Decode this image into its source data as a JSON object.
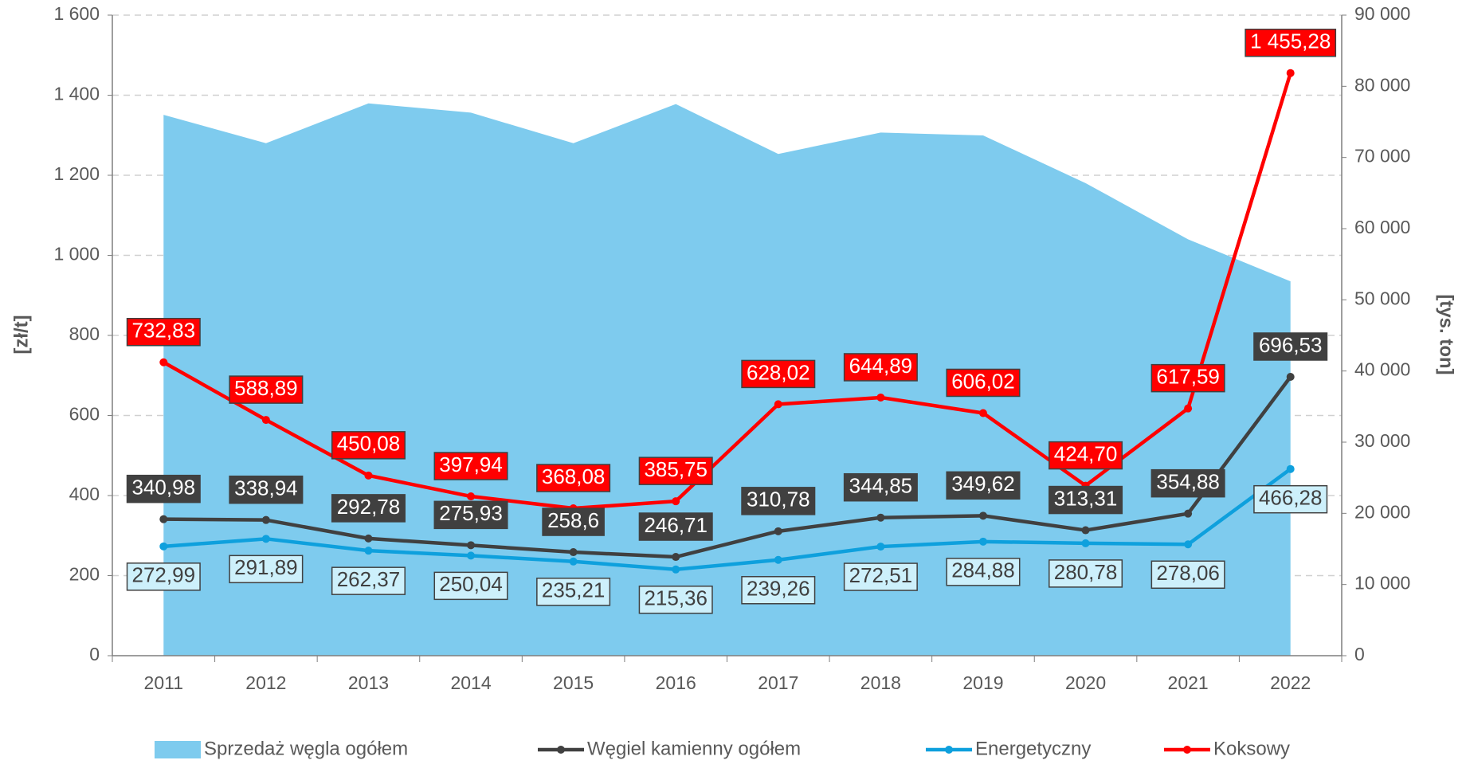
{
  "chart_data": {
    "type": "line",
    "y_label": "[zł/t]",
    "y2_label": "[tys. ton]",
    "categories": [
      "2011",
      "2012",
      "2013",
      "2014",
      "2015",
      "2016",
      "2017",
      "2018",
      "2019",
      "2020",
      "2021",
      "2022"
    ],
    "ylim": [
      0,
      1600
    ],
    "yticks": [
      0,
      200,
      400,
      600,
      800,
      {
        "value": 1000,
        "label": "1 000"
      },
      {
        "value": 1200,
        "label": "1 200"
      },
      {
        "value": 1400,
        "label": "1 400"
      },
      {
        "value": 1600,
        "label": "1 600"
      }
    ],
    "y2lim": [
      0,
      90000
    ],
    "y2ticks": [
      0,
      {
        "value": 10000,
        "label": "10 000"
      },
      {
        "value": 20000,
        "label": "20 000"
      },
      {
        "value": 30000,
        "label": "30 000"
      },
      {
        "value": 40000,
        "label": "40 000"
      },
      {
        "value": 50000,
        "label": "50 000"
      },
      {
        "value": 60000,
        "label": "60 000"
      },
      {
        "value": 70000,
        "label": "70 000"
      },
      {
        "value": 80000,
        "label": "80 000"
      },
      {
        "value": 90000,
        "label": "90 000"
      }
    ],
    "grid": true,
    "legend": "bottom",
    "series": [
      {
        "name": "Sprzedaż węgla ogółem",
        "type": "area",
        "axis": "y2",
        "color": "#7ecbee",
        "values": [
          76000,
          72000,
          77600,
          76300,
          72000,
          77500,
          70500,
          73500,
          73100,
          66400,
          58500,
          52600
        ]
      },
      {
        "name": "Węgiel kamienny ogółem",
        "type": "line",
        "color": "#404040",
        "label_fill": "#404040",
        "label_text": "#ffffff",
        "label_pos": "above",
        "values": [
          340.98,
          338.94,
          292.78,
          275.93,
          258.6,
          246.71,
          310.78,
          344.85,
          349.62,
          313.31,
          354.88,
          696.53
        ],
        "value_labels": [
          "340,98",
          "338,94",
          "292,78",
          "275,93",
          "258,6",
          "246,71",
          "310,78",
          "344,85",
          "349,62",
          "313,31",
          "354,88",
          "696,53"
        ]
      },
      {
        "name": "Energetyczny",
        "type": "line",
        "color": "#0ea0dd",
        "label_fill": "#cdf0fb",
        "label_text": "#404040",
        "label_pos": "below",
        "values": [
          272.99,
          291.89,
          262.37,
          250.04,
          235.21,
          215.36,
          239.26,
          272.51,
          284.88,
          280.78,
          278.06,
          466.28
        ],
        "value_labels": [
          "272,99",
          "291,89",
          "262,37",
          "250,04",
          "235,21",
          "215,36",
          "239,26",
          "272,51",
          "284,88",
          "280,78",
          "278,06",
          "466,28"
        ]
      },
      {
        "name": "Koksowy",
        "type": "line",
        "color": "#ff0000",
        "label_fill": "#ff0000",
        "label_text": "#ffffff",
        "label_pos": "above",
        "values": [
          732.83,
          588.89,
          450.08,
          397.94,
          368.08,
          385.75,
          628.02,
          644.89,
          606.02,
          424.7,
          617.59,
          1455.28
        ],
        "value_labels": [
          "732,83",
          "588,89",
          "450,08",
          "397,94",
          "368,08",
          "385,75",
          "628,02",
          "644,89",
          "606,02",
          "424,70",
          "617,59",
          "1 455,28"
        ]
      }
    ]
  }
}
